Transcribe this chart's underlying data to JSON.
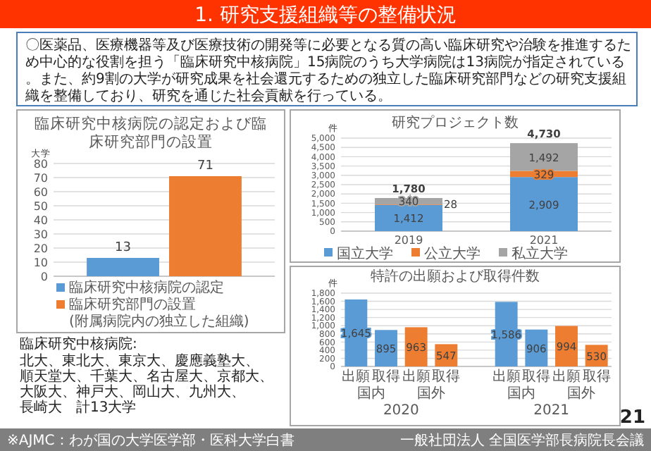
{
  "chart_data": [
    {
      "type": "other",
      "title": "1. 研究支援組織等の整備状況",
      "annotations": [
        "〇医薬品、医療機器等及び医療技術の開発等に必要となる質の高い臨床研究や治験を推進するため中心的な役割を担う「臨床研究中核病院」15病院のうち大学病院は13病院が指定されている。また、約9割の大学が研究成果を社会還元するための独立した臨床研究部門などの研究支援組織を整備しており、研究を通じた社会貢献を行っている。",
        "※AJMC：わが国の大学医学部・医科大学白書",
        "一般社団法人 全国医学部長病院長会議",
        "21"
      ]
    },
    {
      "type": "bar",
      "title": "臨床研究中核病院の認定および臨床研究部門の設置",
      "ylabel": "大学",
      "categories": [
        null
      ],
      "series": [
        {
          "name": "臨床研究中核病院の認定",
          "color": "#5b9bd5",
          "values": [
            13
          ]
        },
        {
          "name": "臨床研究部門の設置",
          "color": "#ed7d31",
          "values": [
            71
          ]
        }
      ],
      "ylim": [
        0,
        80
      ],
      "yticks": [
        0,
        10,
        20,
        30,
        40,
        50,
        60,
        70,
        80
      ],
      "grid": "y",
      "data_labels": true,
      "legend": "bottom",
      "annotations": [
        "(附属病院内の独立した組織)",
        "臨床研究中核病院:",
        "北大、東北大、東京大、慶應義塾大、順天堂大、千葉大、名古屋大、京都大、大阪大、神戸大、岡山大、九州大、長崎大　計13大学"
      ]
    },
    {
      "type": "bar",
      "title": "研究プロジェクト数",
      "ylabel": "件",
      "categories": [
        "2019",
        "2021"
      ],
      "stacked": true,
      "series": [
        {
          "name": "国立大学",
          "color": "#5b9bd5",
          "values": [
            1412,
            2909
          ],
          "value_labels": [
            "1,412",
            "2,909"
          ]
        },
        {
          "name": "公立大学",
          "color": "#ed7d31",
          "values": [
            28,
            329
          ],
          "value_labels": [
            "28",
            "329"
          ]
        },
        {
          "name": "私立大学",
          "color": "#a5a5a5",
          "values": [
            340,
            1492
          ],
          "value_labels": [
            "340",
            "1,492"
          ]
        }
      ],
      "totals": [
        "1,780",
        "4,730"
      ],
      "ylim": [
        0,
        5000
      ],
      "yticks": [
        0,
        500,
        {
          "value": 1000,
          "label": "1,000"
        },
        {
          "value": 1500,
          "label": "1,500"
        },
        {
          "value": 2000,
          "label": "2,000"
        },
        {
          "value": 2500,
          "label": "2,500"
        },
        {
          "value": 3000,
          "label": "3,000"
        },
        {
          "value": 3500,
          "label": "3,500"
        },
        {
          "value": 4000,
          "label": "4,000"
        },
        {
          "value": 4500,
          "label": "4,500"
        },
        {
          "value": 5000,
          "label": "5,000"
        }
      ],
      "grid": "y",
      "legend": "bottom"
    },
    {
      "type": "bar",
      "title": "特許の出願および取得件数",
      "ylabel": "件",
      "categories": [
        "出願",
        "取得",
        "出願",
        "取得",
        null,
        "出願",
        "取得",
        "出願",
        "取得"
      ],
      "values": [
        1645,
        895,
        963,
        547,
        null,
        1586,
        906,
        994,
        530
      ],
      "colors": [
        "#5b9bd5",
        "#5b9bd5",
        "#ed7d31",
        "#ed7d31",
        null,
        "#5b9bd5",
        "#5b9bd5",
        "#ed7d31",
        "#ed7d31"
      ],
      "value_labels": [
        "1,645",
        "895",
        "963",
        "547",
        null,
        "1,586",
        "906",
        "994",
        "530"
      ],
      "ylim": [
        0,
        1800
      ],
      "yticks": [
        0,
        200,
        400,
        600,
        800,
        {
          "value": 1000,
          "label": "1,000"
        },
        {
          "value": 1200,
          "label": "1,200"
        },
        {
          "value": 1400,
          "label": "1,400"
        },
        {
          "value": 1600,
          "label": "1,600"
        },
        {
          "value": 1800,
          "label": "1,800"
        }
      ],
      "grid": "y",
      "annotations": [
        "国内",
        "国外",
        "国内",
        "国外",
        "2020",
        "2021"
      ]
    }
  ]
}
